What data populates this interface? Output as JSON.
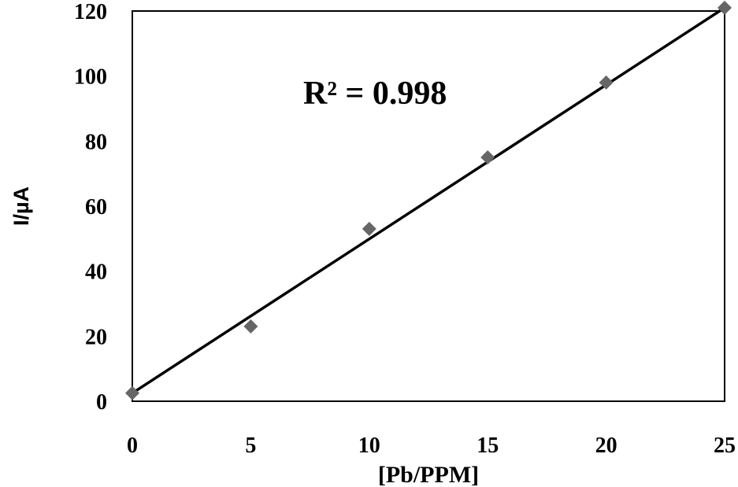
{
  "chart_data": {
    "type": "scatter",
    "x": [
      0,
      5,
      10,
      15,
      20,
      25
    ],
    "y": [
      2.5,
      23,
      53,
      75,
      98,
      121
    ],
    "trendline": {
      "type": "linear",
      "from": [
        0,
        2.5
      ],
      "to": [
        25,
        121
      ]
    },
    "annotation": "R² = 0.998",
    "xlabel": "[Pb/PPM]",
    "ylabel": "I/µA",
    "xlim": [
      0,
      25
    ],
    "ylim": [
      0,
      120
    ],
    "xticks": [
      0,
      5,
      10,
      15,
      20,
      25
    ],
    "yticks": [
      0,
      20,
      40,
      60,
      80,
      100,
      120
    ],
    "grid": false,
    "marker_color": "#666666",
    "line_color": "#000000"
  }
}
